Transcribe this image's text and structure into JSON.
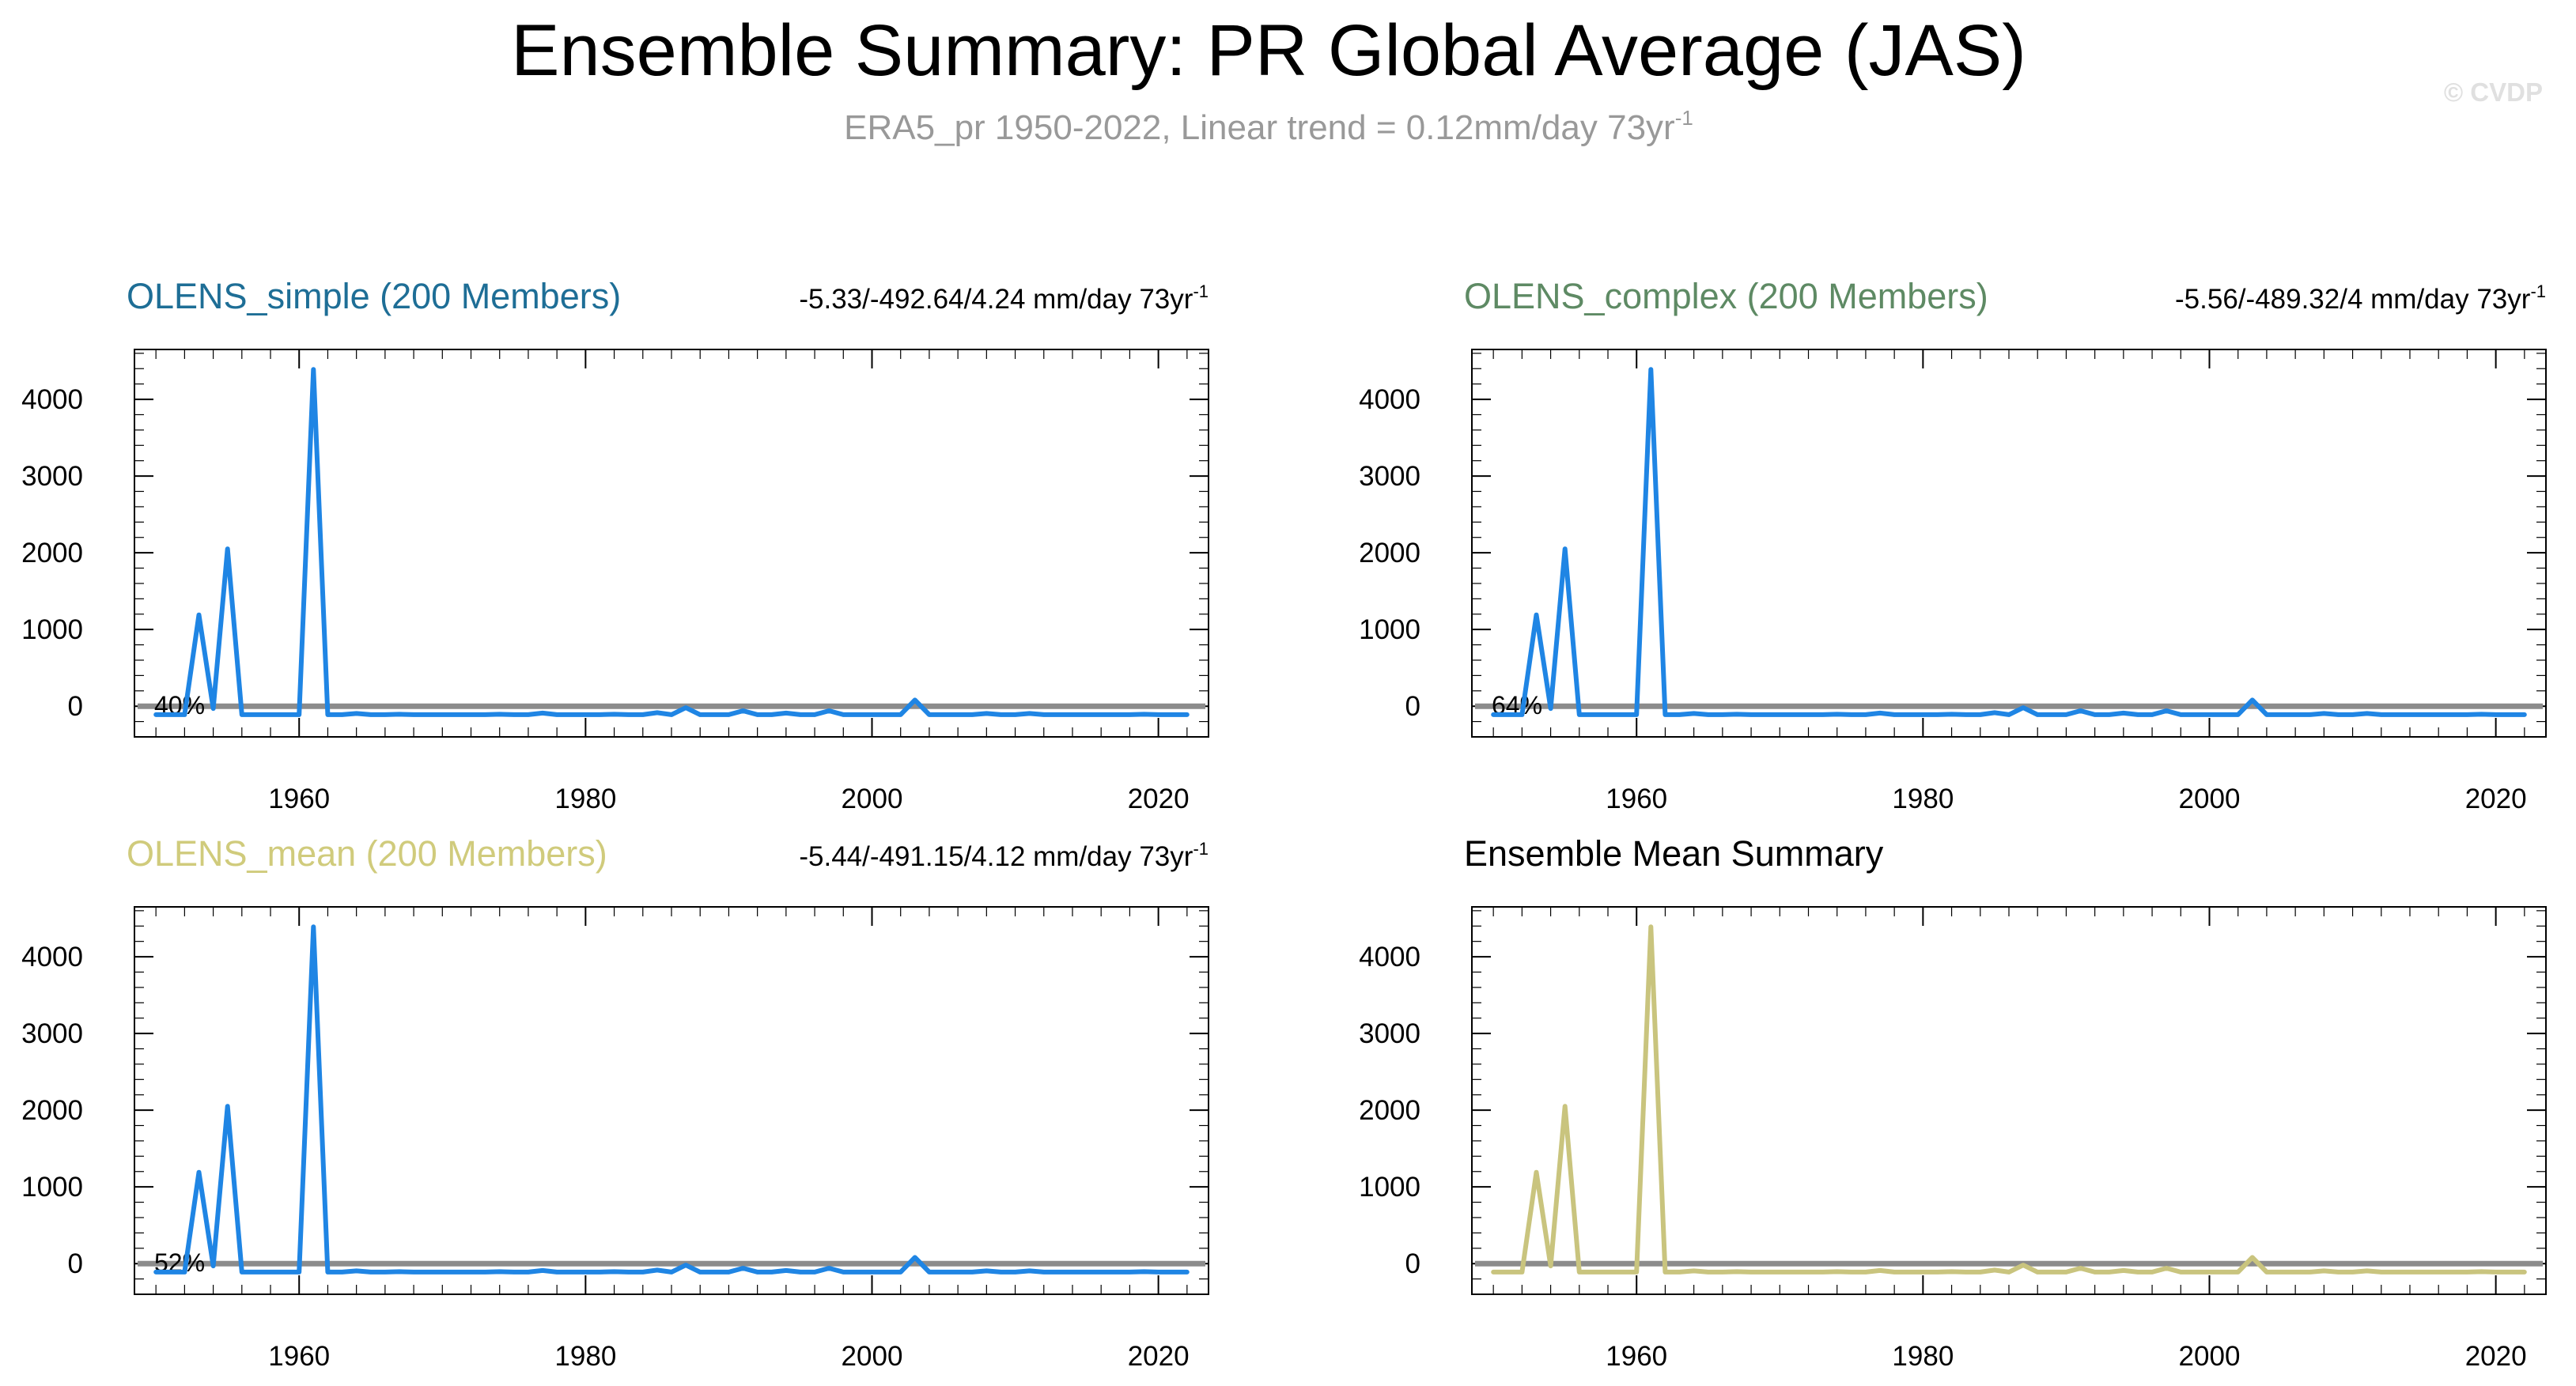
{
  "figure": {
    "title": "Ensemble Summary: PR Global Average (JAS)",
    "subtitle_main": "ERA5_pr 1950-2022, Linear trend = 0.12mm/day 73yr",
    "subtitle_sup": "-1",
    "watermark": "© CVDP"
  },
  "colors": {
    "olens_simple": "#1e6e96",
    "olens_complex": "#5e8a64",
    "olens_mean": "#d0cb7c",
    "ensemble_mean_title": "#000000",
    "obs_line": "#1f85e4",
    "mean_line": "#c9c47e",
    "zero_line": "#8c8c8c"
  },
  "panels": [
    {
      "id": "olens_simple",
      "title": "OLENS_simple (200 Members)",
      "stats_main": "-5.33/-492.64/4.24 mm/day 73yr",
      "stats_sup": "-1",
      "percent_label": "40%",
      "line_color_key": "obs_line",
      "title_color_key": "olens_simple"
    },
    {
      "id": "olens_complex",
      "title": "OLENS_complex (200 Members)",
      "stats_main": "-5.56/-489.32/4 mm/day 73yr",
      "stats_sup": "-1",
      "percent_label": "64%",
      "line_color_key": "obs_line",
      "title_color_key": "olens_complex"
    },
    {
      "id": "olens_mean",
      "title": "OLENS_mean (200 Members)",
      "stats_main": "-5.44/-491.15/4.12 mm/day 73yr",
      "stats_sup": "-1",
      "percent_label": "52%",
      "line_color_key": "obs_line",
      "title_color_key": "olens_mean"
    },
    {
      "id": "ensemble_mean_summary",
      "title": "Ensemble Mean Summary",
      "stats_main": "",
      "stats_sup": "",
      "percent_label": "",
      "line_color_key": "mean_line",
      "title_color_key": "ensemble_mean_title"
    }
  ],
  "chart_data": {
    "type": "line",
    "xlim": [
      1948.5,
      2023.5
    ],
    "ylim": [
      -400,
      4650
    ],
    "x_ticks": [
      1960,
      1980,
      2000,
      2020
    ],
    "y_ticks": [
      0,
      1000,
      2000,
      3000,
      4000
    ],
    "reference_line": 0,
    "x": [
      1950,
      1951,
      1952,
      1953,
      1954,
      1955,
      1956,
      1957,
      1958,
      1959,
      1960,
      1961,
      1962,
      1963,
      1964,
      1965,
      1966,
      1967,
      1968,
      1969,
      1970,
      1971,
      1972,
      1973,
      1974,
      1975,
      1976,
      1977,
      1978,
      1979,
      1980,
      1981,
      1982,
      1983,
      1984,
      1985,
      1986,
      1987,
      1988,
      1989,
      1990,
      1991,
      1992,
      1993,
      1994,
      1995,
      1996,
      1997,
      1998,
      1999,
      2000,
      2001,
      2002,
      2003,
      2004,
      2005,
      2006,
      2007,
      2008,
      2009,
      2010,
      2011,
      2012,
      2013,
      2014,
      2015,
      2016,
      2017,
      2018,
      2019,
      2020,
      2021,
      2022
    ],
    "series": [
      {
        "name": "ERA5_pr",
        "values": [
          -110,
          -110,
          -110,
          1190,
          -30,
          2050,
          -110,
          -110,
          -110,
          -110,
          -110,
          4390,
          -110,
          -110,
          -95,
          -110,
          -110,
          -105,
          -110,
          -110,
          -110,
          -110,
          -110,
          -110,
          -105,
          -110,
          -110,
          -90,
          -110,
          -110,
          -110,
          -110,
          -105,
          -110,
          -110,
          -85,
          -110,
          -20,
          -110,
          -110,
          -110,
          -60,
          -110,
          -110,
          -90,
          -110,
          -110,
          -60,
          -110,
          -110,
          -110,
          -110,
          -110,
          80,
          -110,
          -110,
          -110,
          -110,
          -95,
          -110,
          -110,
          -95,
          -110,
          -110,
          -110,
          -110,
          -110,
          -110,
          -110,
          -105,
          -110,
          -110,
          -110
        ]
      },
      {
        "name": "Ensemble mean",
        "values": [
          -110,
          -110,
          -110,
          1190,
          -30,
          2050,
          -110,
          -110,
          -110,
          -110,
          -110,
          4390,
          -110,
          -110,
          -95,
          -110,
          -110,
          -105,
          -110,
          -110,
          -110,
          -110,
          -110,
          -110,
          -105,
          -110,
          -110,
          -90,
          -110,
          -110,
          -110,
          -110,
          -105,
          -110,
          -110,
          -85,
          -110,
          -20,
          -110,
          -110,
          -110,
          -60,
          -110,
          -110,
          -90,
          -110,
          -110,
          -60,
          -110,
          -110,
          -110,
          -110,
          -110,
          80,
          -110,
          -110,
          -110,
          -110,
          -95,
          -110,
          -110,
          -95,
          -110,
          -110,
          -110,
          -110,
          -110,
          -110,
          -110,
          -105,
          -110,
          -110,
          -110
        ]
      }
    ]
  }
}
